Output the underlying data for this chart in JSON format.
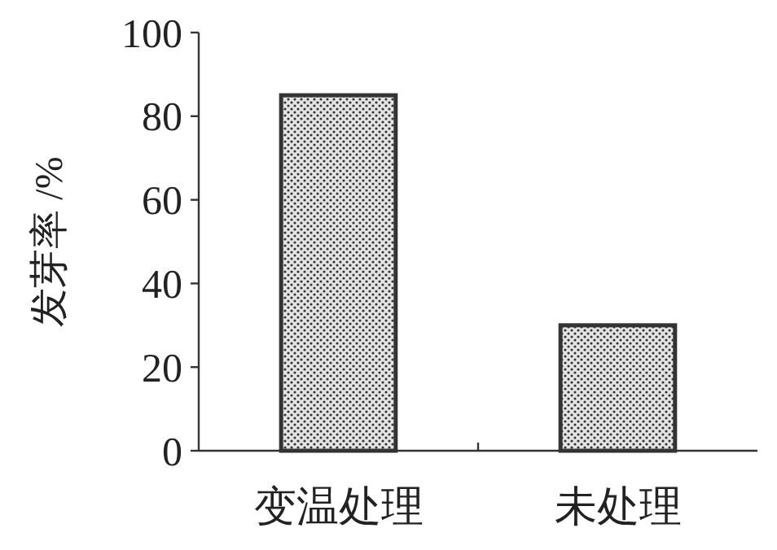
{
  "chart_data": {
    "type": "bar",
    "ylabel": "发芽率 /%",
    "categories": [
      "变温处理",
      "未处理"
    ],
    "values": [
      85,
      30
    ],
    "color": "#333333",
    "ylim": [
      0,
      100
    ],
    "yticks": [
      0,
      20,
      40,
      60,
      80,
      100
    ],
    "grid": false
  }
}
